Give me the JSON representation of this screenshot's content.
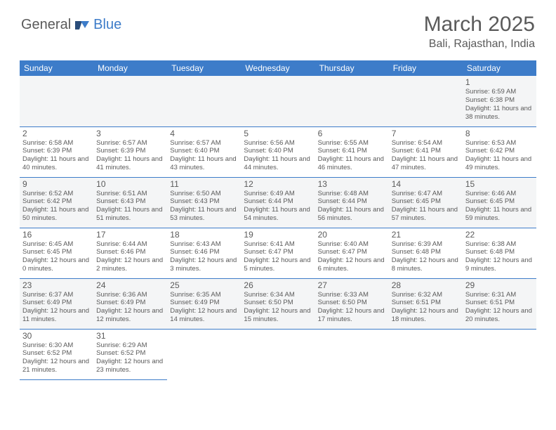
{
  "brand": {
    "part1": "General",
    "part2": "Blue"
  },
  "title": "March 2025",
  "location": "Bali, Rajasthan, India",
  "colors": {
    "header_bg": "#3d7cc9",
    "text": "#5a5a5a",
    "alt_row": "#f4f5f6"
  },
  "day_headers": [
    "Sunday",
    "Monday",
    "Tuesday",
    "Wednesday",
    "Thursday",
    "Friday",
    "Saturday"
  ],
  "weeks": [
    [
      null,
      null,
      null,
      null,
      null,
      null,
      {
        "n": "1",
        "sunrise": "Sunrise: 6:59 AM",
        "sunset": "Sunset: 6:38 PM",
        "daylight": "Daylight: 11 hours and 38 minutes."
      }
    ],
    [
      {
        "n": "2",
        "sunrise": "Sunrise: 6:58 AM",
        "sunset": "Sunset: 6:39 PM",
        "daylight": "Daylight: 11 hours and 40 minutes."
      },
      {
        "n": "3",
        "sunrise": "Sunrise: 6:57 AM",
        "sunset": "Sunset: 6:39 PM",
        "daylight": "Daylight: 11 hours and 41 minutes."
      },
      {
        "n": "4",
        "sunrise": "Sunrise: 6:57 AM",
        "sunset": "Sunset: 6:40 PM",
        "daylight": "Daylight: 11 hours and 43 minutes."
      },
      {
        "n": "5",
        "sunrise": "Sunrise: 6:56 AM",
        "sunset": "Sunset: 6:40 PM",
        "daylight": "Daylight: 11 hours and 44 minutes."
      },
      {
        "n": "6",
        "sunrise": "Sunrise: 6:55 AM",
        "sunset": "Sunset: 6:41 PM",
        "daylight": "Daylight: 11 hours and 46 minutes."
      },
      {
        "n": "7",
        "sunrise": "Sunrise: 6:54 AM",
        "sunset": "Sunset: 6:41 PM",
        "daylight": "Daylight: 11 hours and 47 minutes."
      },
      {
        "n": "8",
        "sunrise": "Sunrise: 6:53 AM",
        "sunset": "Sunset: 6:42 PM",
        "daylight": "Daylight: 11 hours and 49 minutes."
      }
    ],
    [
      {
        "n": "9",
        "sunrise": "Sunrise: 6:52 AM",
        "sunset": "Sunset: 6:42 PM",
        "daylight": "Daylight: 11 hours and 50 minutes."
      },
      {
        "n": "10",
        "sunrise": "Sunrise: 6:51 AM",
        "sunset": "Sunset: 6:43 PM",
        "daylight": "Daylight: 11 hours and 51 minutes."
      },
      {
        "n": "11",
        "sunrise": "Sunrise: 6:50 AM",
        "sunset": "Sunset: 6:43 PM",
        "daylight": "Daylight: 11 hours and 53 minutes."
      },
      {
        "n": "12",
        "sunrise": "Sunrise: 6:49 AM",
        "sunset": "Sunset: 6:44 PM",
        "daylight": "Daylight: 11 hours and 54 minutes."
      },
      {
        "n": "13",
        "sunrise": "Sunrise: 6:48 AM",
        "sunset": "Sunset: 6:44 PM",
        "daylight": "Daylight: 11 hours and 56 minutes."
      },
      {
        "n": "14",
        "sunrise": "Sunrise: 6:47 AM",
        "sunset": "Sunset: 6:45 PM",
        "daylight": "Daylight: 11 hours and 57 minutes."
      },
      {
        "n": "15",
        "sunrise": "Sunrise: 6:46 AM",
        "sunset": "Sunset: 6:45 PM",
        "daylight": "Daylight: 11 hours and 59 minutes."
      }
    ],
    [
      {
        "n": "16",
        "sunrise": "Sunrise: 6:45 AM",
        "sunset": "Sunset: 6:45 PM",
        "daylight": "Daylight: 12 hours and 0 minutes."
      },
      {
        "n": "17",
        "sunrise": "Sunrise: 6:44 AM",
        "sunset": "Sunset: 6:46 PM",
        "daylight": "Daylight: 12 hours and 2 minutes."
      },
      {
        "n": "18",
        "sunrise": "Sunrise: 6:43 AM",
        "sunset": "Sunset: 6:46 PM",
        "daylight": "Daylight: 12 hours and 3 minutes."
      },
      {
        "n": "19",
        "sunrise": "Sunrise: 6:41 AM",
        "sunset": "Sunset: 6:47 PM",
        "daylight": "Daylight: 12 hours and 5 minutes."
      },
      {
        "n": "20",
        "sunrise": "Sunrise: 6:40 AM",
        "sunset": "Sunset: 6:47 PM",
        "daylight": "Daylight: 12 hours and 6 minutes."
      },
      {
        "n": "21",
        "sunrise": "Sunrise: 6:39 AM",
        "sunset": "Sunset: 6:48 PM",
        "daylight": "Daylight: 12 hours and 8 minutes."
      },
      {
        "n": "22",
        "sunrise": "Sunrise: 6:38 AM",
        "sunset": "Sunset: 6:48 PM",
        "daylight": "Daylight: 12 hours and 9 minutes."
      }
    ],
    [
      {
        "n": "23",
        "sunrise": "Sunrise: 6:37 AM",
        "sunset": "Sunset: 6:49 PM",
        "daylight": "Daylight: 12 hours and 11 minutes."
      },
      {
        "n": "24",
        "sunrise": "Sunrise: 6:36 AM",
        "sunset": "Sunset: 6:49 PM",
        "daylight": "Daylight: 12 hours and 12 minutes."
      },
      {
        "n": "25",
        "sunrise": "Sunrise: 6:35 AM",
        "sunset": "Sunset: 6:49 PM",
        "daylight": "Daylight: 12 hours and 14 minutes."
      },
      {
        "n": "26",
        "sunrise": "Sunrise: 6:34 AM",
        "sunset": "Sunset: 6:50 PM",
        "daylight": "Daylight: 12 hours and 15 minutes."
      },
      {
        "n": "27",
        "sunrise": "Sunrise: 6:33 AM",
        "sunset": "Sunset: 6:50 PM",
        "daylight": "Daylight: 12 hours and 17 minutes."
      },
      {
        "n": "28",
        "sunrise": "Sunrise: 6:32 AM",
        "sunset": "Sunset: 6:51 PM",
        "daylight": "Daylight: 12 hours and 18 minutes."
      },
      {
        "n": "29",
        "sunrise": "Sunrise: 6:31 AM",
        "sunset": "Sunset: 6:51 PM",
        "daylight": "Daylight: 12 hours and 20 minutes."
      }
    ],
    [
      {
        "n": "30",
        "sunrise": "Sunrise: 6:30 AM",
        "sunset": "Sunset: 6:52 PM",
        "daylight": "Daylight: 12 hours and 21 minutes."
      },
      {
        "n": "31",
        "sunrise": "Sunrise: 6:29 AM",
        "sunset": "Sunset: 6:52 PM",
        "daylight": "Daylight: 12 hours and 23 minutes."
      },
      null,
      null,
      null,
      null,
      null
    ]
  ]
}
